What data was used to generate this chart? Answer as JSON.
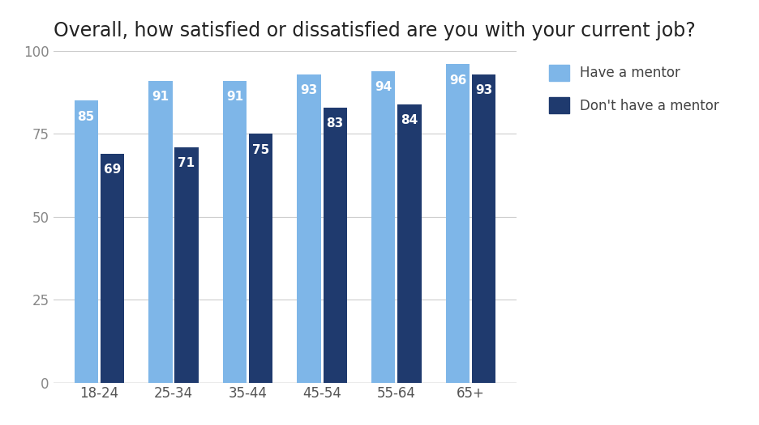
{
  "title": "Overall, how satisfied or dissatisfied are you with your current job?",
  "categories": [
    "18-24",
    "25-34",
    "35-44",
    "45-54",
    "55-64",
    "65+"
  ],
  "have_mentor": [
    85,
    91,
    91,
    93,
    94,
    96
  ],
  "no_mentor": [
    69,
    71,
    75,
    83,
    84,
    93
  ],
  "color_mentor": "#7EB6E8",
  "color_no_mentor": "#1F3A6E",
  "legend_mentor": "Have a mentor",
  "legend_no_mentor": "Don't have a mentor",
  "ylim": [
    0,
    100
  ],
  "yticks": [
    0,
    25,
    50,
    75,
    100
  ],
  "background_color": "#ffffff",
  "title_fontsize": 17,
  "label_fontsize": 12,
  "tick_fontsize": 12,
  "bar_label_fontsize": 11
}
